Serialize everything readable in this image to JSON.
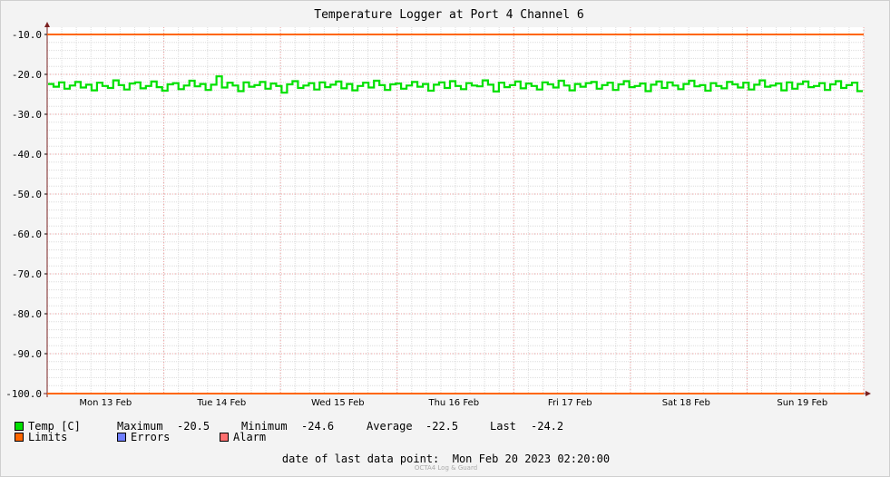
{
  "chart_data": {
    "type": "line",
    "title": "Temperature Logger at Port 4 Channel 6",
    "ylim": [
      -100,
      -10
    ],
    "y_ticks": [
      "-10.0",
      "-20.0",
      "-30.0",
      "-40.0",
      "-50.0",
      "-60.0",
      "-70.0",
      "-80.0",
      "-90.0",
      "-100.0"
    ],
    "x_ticks": [
      "Mon 13 Feb",
      "Tue 14 Feb",
      "Wed 15 Feb",
      "Thu 16 Feb",
      "Fri 17 Feb",
      "Sat 18 Feb",
      "Sun 19 Feb"
    ],
    "grid": true,
    "series": [
      {
        "name": "Temp [C]",
        "color": "#00e000",
        "values": [
          -22.4,
          -23.1,
          -22.0,
          -23.6,
          -22.8,
          -21.9,
          -23.3,
          -22.6,
          -24.0,
          -22.1,
          -22.9,
          -23.4,
          -21.5,
          -22.7,
          -23.8,
          -22.3,
          -22.0,
          -23.5,
          -22.9,
          -21.8,
          -23.2,
          -24.1,
          -22.5,
          -22.2,
          -23.7,
          -22.8,
          -21.6,
          -23.0,
          -22.4,
          -23.9,
          -22.6,
          -20.5,
          -23.3,
          -22.1,
          -22.8,
          -24.2,
          -22.0,
          -23.1,
          -22.7,
          -21.9,
          -23.6,
          -22.3,
          -22.9,
          -24.6,
          -22.5,
          -21.7,
          -23.4,
          -22.8,
          -22.2,
          -23.8,
          -22.0,
          -23.2,
          -22.6,
          -21.8,
          -23.5,
          -22.4,
          -24.0,
          -22.9,
          -22.1,
          -23.3,
          -21.6,
          -22.7,
          -23.9,
          -22.5,
          -22.3,
          -23.6,
          -22.8,
          -21.9,
          -23.1,
          -22.4,
          -24.1,
          -22.6,
          -22.0,
          -23.4,
          -21.7,
          -22.9,
          -23.7,
          -22.2,
          -22.8,
          -23.0,
          -21.5,
          -22.6,
          -24.3,
          -22.1,
          -23.2,
          -22.7,
          -21.8,
          -23.5,
          -22.3,
          -22.9,
          -23.8,
          -22.0,
          -22.5,
          -23.3,
          -21.6,
          -22.8,
          -24.0,
          -22.4,
          -23.1,
          -22.2,
          -21.9,
          -23.6,
          -22.7,
          -22.1,
          -23.9,
          -22.5,
          -21.7,
          -23.2,
          -22.9,
          -22.3,
          -24.2,
          -22.6,
          -21.8,
          -23.4,
          -22.0,
          -22.8,
          -23.7,
          -22.4,
          -21.6,
          -23.0,
          -22.7,
          -24.1,
          -22.2,
          -22.9,
          -23.5,
          -21.9,
          -22.5,
          -23.3,
          -22.1,
          -23.8,
          -22.6,
          -21.5,
          -23.1,
          -22.8,
          -22.3,
          -24.0,
          -22.0,
          -23.6,
          -22.4,
          -21.8,
          -23.2,
          -22.9,
          -22.2,
          -23.9,
          -22.5,
          -21.7,
          -23.4,
          -22.7,
          -22.1,
          -24.2
        ]
      },
      {
        "name": "Limits",
        "color": "#ff6600",
        "values": [
          -10.0,
          -100.0
        ]
      },
      {
        "name": "Errors",
        "color": "#6f7fff",
        "values": []
      },
      {
        "name": "Alarm",
        "color": "#ff6f6f",
        "values": []
      }
    ]
  },
  "stats": {
    "max_label": "Maximum",
    "max_value": "-20.5",
    "min_label": "Minimum",
    "min_value": "-24.6",
    "avg_label": "Average",
    "avg_value": "-22.5",
    "last_label": "Last",
    "last_value": "-24.2"
  },
  "footer": {
    "label": "date of last data point:",
    "value": "Mon Feb 20 2023 02:20:00"
  },
  "watermark": "OCTA4 Log & Guard"
}
